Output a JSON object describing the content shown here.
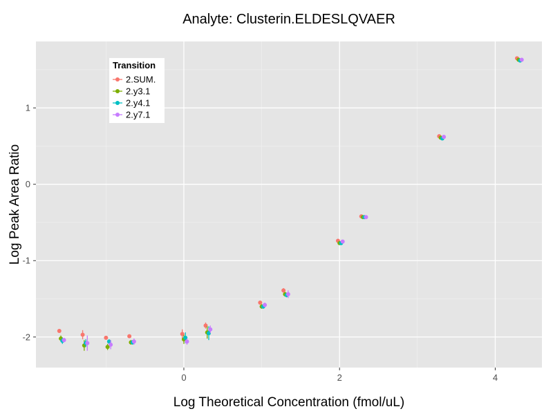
{
  "chart_data": {
    "type": "scatter",
    "title": "Analyte: Clusterin.ELDESLQVAER",
    "xlabel": "Log Theoretical Concentration (fmol/uL)",
    "ylabel": "Log Peak Area Ratio",
    "xlim": [
      -1.9,
      4.6
    ],
    "ylim": [
      -2.4,
      1.87
    ],
    "xticks": [
      0,
      2,
      4
    ],
    "yticks": [
      -2,
      -1,
      0,
      1
    ],
    "grid": true,
    "error_bars": true,
    "legend": {
      "title": "Transition",
      "position": "top-left"
    },
    "series": [
      {
        "name": "2.SUM.",
        "color": "#F8766D",
        "x": [
          -1.6,
          -1.3,
          -1.0,
          -0.7,
          -0.02,
          0.28,
          0.98,
          1.28,
          1.98,
          2.28,
          3.28,
          4.28
        ],
        "y": [
          -1.92,
          -1.97,
          -2.01,
          -1.99,
          -1.96,
          -1.85,
          -1.55,
          -1.39,
          -0.74,
          -0.42,
          0.63,
          1.65
        ],
        "err": [
          0.02,
          0.06,
          0.02,
          0.02,
          0.06,
          0.04,
          0.02,
          0.03,
          0.02,
          0.01,
          0.01,
          0.01
        ]
      },
      {
        "name": "2.y3.1",
        "color": "#7CAE00",
        "x": [
          -1.58,
          -1.28,
          -0.98,
          -0.68,
          0.0,
          0.3,
          1.0,
          1.3,
          2.0,
          2.3,
          3.3,
          4.3
        ],
        "y": [
          -2.02,
          -2.11,
          -2.13,
          -2.07,
          -2.03,
          -1.94,
          -1.6,
          -1.44,
          -0.77,
          -0.43,
          0.61,
          1.63
        ],
        "err": [
          0.04,
          0.07,
          0.04,
          0.03,
          0.06,
          0.08,
          0.03,
          0.03,
          0.02,
          0.01,
          0.01,
          0.01
        ]
      },
      {
        "name": "2.y4.1",
        "color": "#00BFC4",
        "x": [
          -1.56,
          -1.26,
          -0.96,
          -0.66,
          0.02,
          0.32,
          1.02,
          1.32,
          2.02,
          2.32,
          3.32,
          4.32
        ],
        "y": [
          -2.05,
          -2.08,
          -2.06,
          -2.07,
          -2.01,
          -1.95,
          -1.6,
          -1.45,
          -0.77,
          -0.43,
          0.6,
          1.62
        ],
        "err": [
          0.04,
          0.05,
          0.03,
          0.03,
          0.07,
          0.09,
          0.03,
          0.03,
          0.02,
          0.01,
          0.02,
          0.01
        ]
      },
      {
        "name": "2.y7.1",
        "color": "#C77CFF",
        "x": [
          -1.54,
          -1.24,
          -0.94,
          -0.64,
          0.04,
          0.34,
          1.04,
          1.34,
          2.04,
          2.34,
          3.34,
          4.34
        ],
        "y": [
          -2.04,
          -2.08,
          -2.1,
          -2.06,
          -2.06,
          -1.9,
          -1.58,
          -1.44,
          -0.75,
          -0.43,
          0.62,
          1.63
        ],
        "err": [
          0.03,
          0.1,
          0.06,
          0.04,
          0.04,
          0.05,
          0.03,
          0.05,
          0.02,
          0.01,
          0.01,
          0.01
        ]
      }
    ]
  },
  "colors": {
    "panel_background": "#E5E5E5",
    "grid_major": "#FFFFFF",
    "grid_minor": "#F2F2F2"
  }
}
